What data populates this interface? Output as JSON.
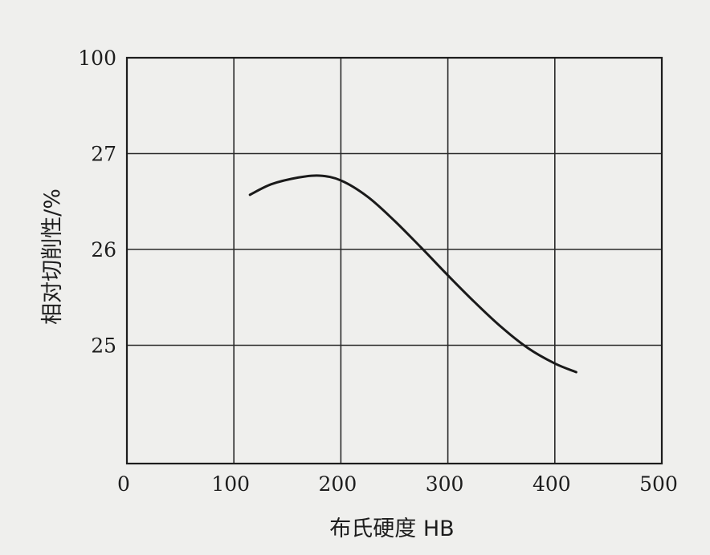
{
  "chart_data": {
    "type": "line",
    "title": "",
    "xlabel": "布氏硬度 HB",
    "ylabel": "相对切削性/%",
    "x_ticks": [
      "0",
      "100",
      "200",
      "300",
      "400",
      "500"
    ],
    "y_ticks": [
      "25",
      "26",
      "27",
      "100"
    ],
    "xlim": [
      0,
      500
    ],
    "y_axis_note": "broken scale: equal spacing between 25, 26, 27 and 100; unlabeled gridline below 25",
    "grid": true,
    "legend": "none",
    "series": [
      {
        "name": "",
        "color": "#1a1a1a",
        "points": [
          {
            "x": 115,
            "y": 26.57
          },
          {
            "x": 135,
            "y": 26.68
          },
          {
            "x": 160,
            "y": 26.75
          },
          {
            "x": 180,
            "y": 26.77
          },
          {
            "x": 200,
            "y": 26.72
          },
          {
            "x": 225,
            "y": 26.55
          },
          {
            "x": 250,
            "y": 26.3
          },
          {
            "x": 275,
            "y": 26.02
          },
          {
            "x": 300,
            "y": 25.73
          },
          {
            "x": 325,
            "y": 25.45
          },
          {
            "x": 350,
            "y": 25.19
          },
          {
            "x": 375,
            "y": 24.97
          },
          {
            "x": 400,
            "y": 24.81
          },
          {
            "x": 420,
            "y": 24.72
          }
        ]
      }
    ]
  }
}
